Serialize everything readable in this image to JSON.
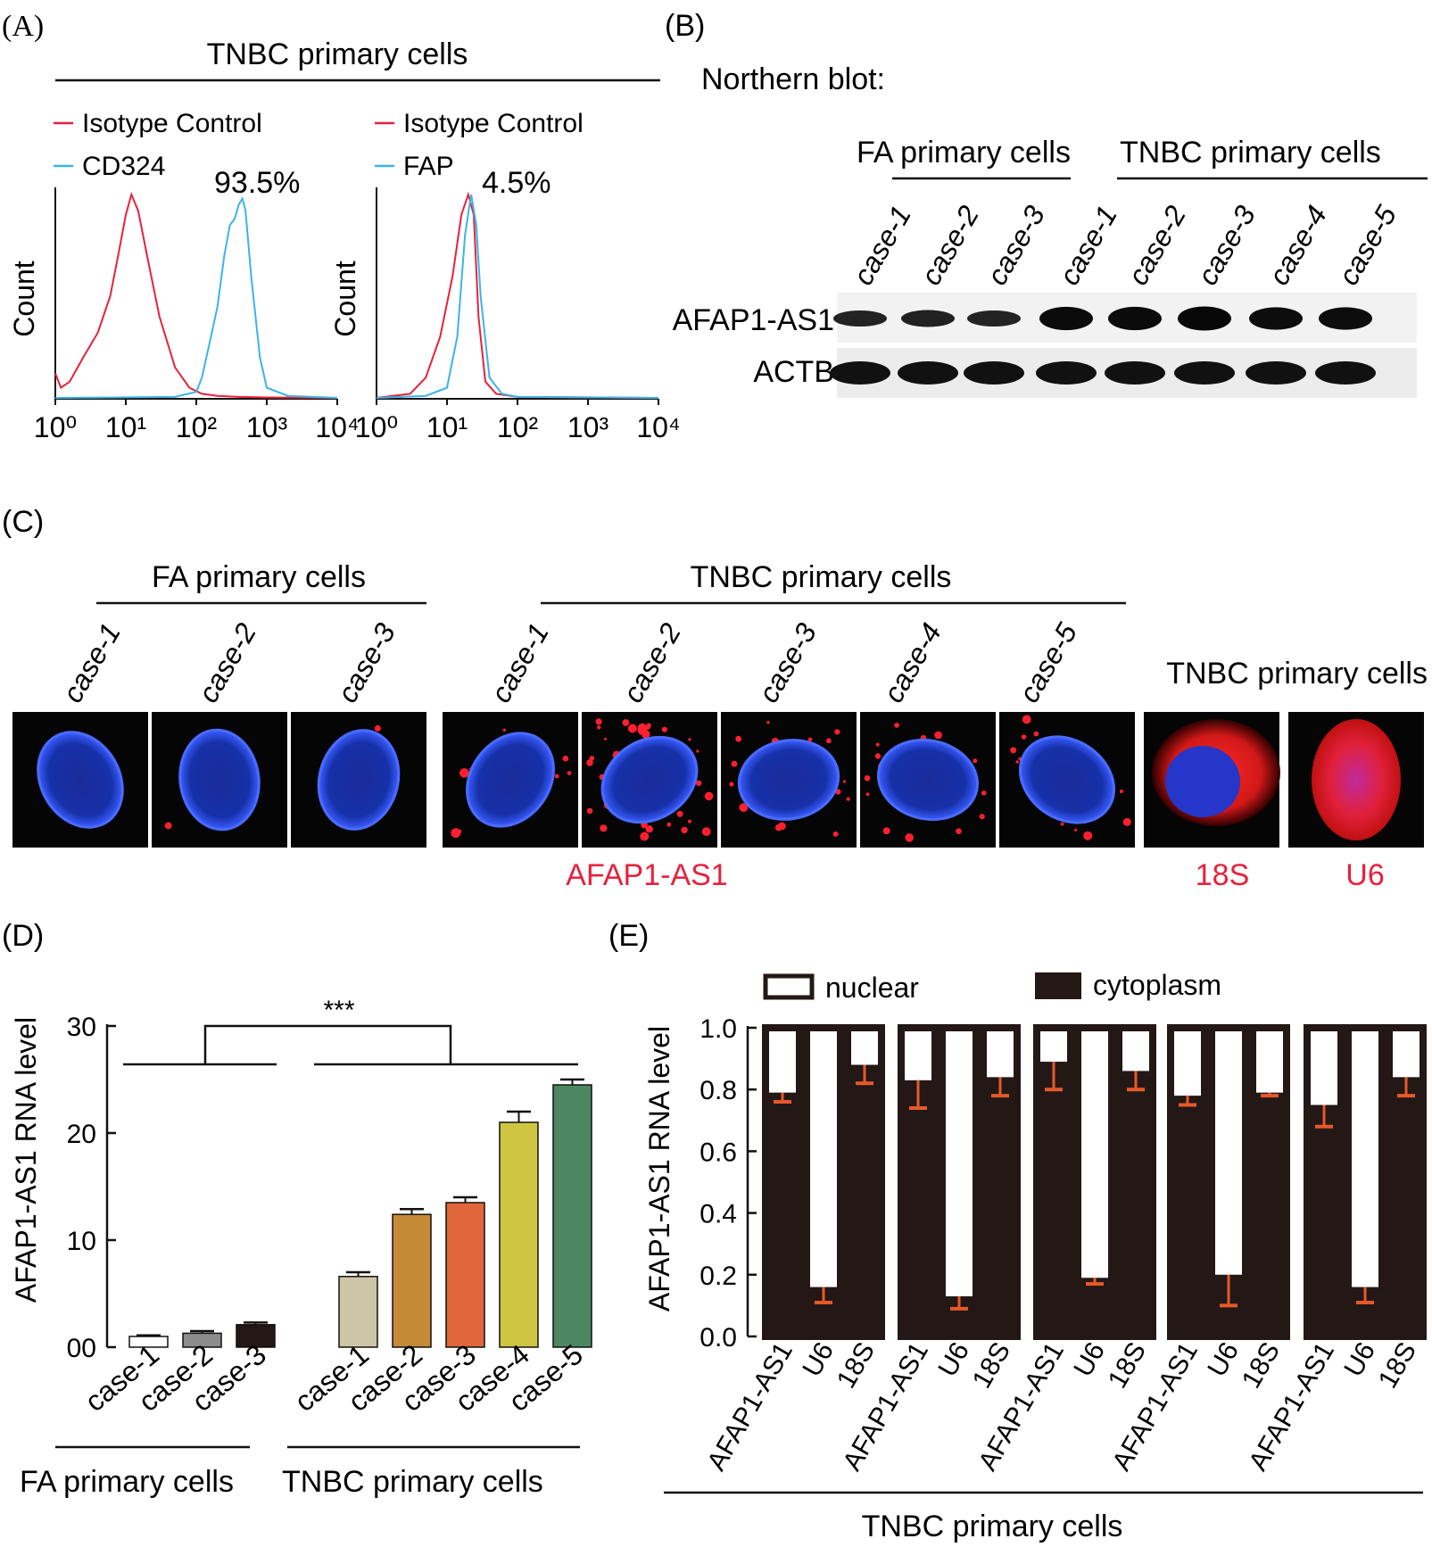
{
  "panels": {
    "A": {
      "letter": "(A)",
      "title": "TNBC primary cells",
      "ylabel": "Count",
      "ticks": [
        "10⁰",
        "10¹",
        "10²",
        "10³",
        "10⁴"
      ],
      "left": {
        "legend": [
          "Isotype Control",
          "CD324"
        ],
        "percent": "93.5%"
      },
      "right": {
        "legend": [
          "Isotype Control",
          "FAP"
        ],
        "percent": "4.5%"
      }
    },
    "B": {
      "letter": "(B)",
      "title": "Northern blot:",
      "group_fa": "FA primary cells",
      "group_tnbc": "TNBC primary cells",
      "lanes": [
        "case-1",
        "case-2",
        "case-3",
        "case-1",
        "case-2",
        "case-3",
        "case-4",
        "case-5"
      ],
      "rows": [
        "AFAP1-AS1",
        "ACTB"
      ]
    },
    "C": {
      "letter": "(C)",
      "group_fa": "FA primary cells",
      "group_tnbc": "TNBC primary cells",
      "group_tnbc2": "TNBC primary cells",
      "cases": [
        "case-1",
        "case-2",
        "case-3",
        "case-1",
        "case-2",
        "case-3",
        "case-4",
        "case-5"
      ],
      "label_main": "AFAP1-AS1",
      "label_18s": "18S",
      "label_u6": "U6"
    },
    "D": {
      "letter": "(D)",
      "significance": "***",
      "group_fa": "FA primary cells",
      "group_tnbc": "TNBC primary cells"
    },
    "E": {
      "letter": "(E)",
      "legend_nuclear": "nuclear",
      "legend_cytoplasm": "cytoplasm",
      "group": "TNBC primary cells"
    }
  },
  "colors": {
    "red": "#e8213c",
    "blue": "#3cb4e6",
    "errorbar": "#e8582a",
    "dark": "#231815",
    "labelRed": "#e8213c"
  },
  "chart_data": [
    {
      "id": "D",
      "type": "bar",
      "title": "",
      "xlabel": "",
      "ylabel": "AFAP1-AS1 RNA level",
      "ylim": [
        0,
        30
      ],
      "yticks": [
        0,
        10,
        20,
        30
      ],
      "ytick_labels": [
        "00",
        "10",
        "20",
        "30"
      ],
      "categories": [
        "case-1",
        "case-2",
        "case-3",
        "case-1",
        "case-2",
        "case-3",
        "case-4",
        "case-5"
      ],
      "groups": [
        "FA",
        "FA",
        "FA",
        "TNBC",
        "TNBC",
        "TNBC",
        "TNBC",
        "TNBC"
      ],
      "values": [
        1.0,
        1.3,
        2.1,
        6.6,
        12.4,
        13.5,
        21.0,
        24.5
      ],
      "errors": [
        0.1,
        0.2,
        0.2,
        0.4,
        0.5,
        0.5,
        1.0,
        0.5
      ],
      "bar_colors": [
        "#ffffff",
        "#8c8c8c",
        "#231815",
        "#cdc6a6",
        "#c58a35",
        "#e1663c",
        "#cfc543",
        "#4d8761"
      ]
    },
    {
      "id": "E",
      "type": "bar",
      "stacked": true,
      "ylabel": "AFAP1-AS1 RNA level",
      "ylim": [
        0,
        1.0
      ],
      "yticks": [
        0.0,
        0.2,
        0.4,
        0.6,
        0.8,
        1.0
      ],
      "ytick_labels": [
        "0.0",
        "0.2",
        "0.4",
        "0.6",
        "0.8",
        "1.0"
      ],
      "categories": [
        "AFAP1-AS1",
        "U6",
        "18S"
      ],
      "series_names": [
        "cytoplasm",
        "nuclear"
      ],
      "cytoplasm_fraction": [
        [
          0.79,
          0.16,
          0.88
        ],
        [
          0.83,
          0.13,
          0.84
        ],
        [
          0.89,
          0.19,
          0.86
        ],
        [
          0.78,
          0.2,
          0.79
        ],
        [
          0.75,
          0.16,
          0.84
        ]
      ],
      "lower_error": [
        [
          0.03,
          0.05,
          0.06
        ],
        [
          0.09,
          0.04,
          0.06
        ],
        [
          0.09,
          0.02,
          0.06
        ],
        [
          0.03,
          0.1,
          0.01
        ],
        [
          0.07,
          0.05,
          0.06
        ]
      ]
    },
    {
      "id": "A",
      "type": "line",
      "xscale": "log",
      "xlim": [
        1,
        10000
      ],
      "ylabel": "Count",
      "plots": [
        {
          "series": [
            {
              "name": "Isotype Control",
              "x": [
                1,
                1.2,
                1.6,
                2.5,
                4,
                6,
                8,
                10,
                12,
                15,
                20,
                30,
                50,
                80,
                120,
                200,
                400,
                1000,
                10000
              ],
              "y": [
                0.12,
                0.05,
                0.08,
                0.2,
                0.32,
                0.5,
                0.72,
                0.9,
                1.0,
                0.92,
                0.7,
                0.4,
                0.15,
                0.05,
                0.02,
                0.01,
                0.005,
                0.002,
                0
              ]
            },
            {
              "name": "CD324",
              "x": [
                1,
                50,
                100,
                120,
                150,
                200,
                250,
                300,
                350,
                400,
                450,
                500,
                600,
                800,
                1000,
                2000,
                10000
              ],
              "y": [
                0,
                0.005,
                0.03,
                0.1,
                0.25,
                0.45,
                0.7,
                0.85,
                0.88,
                0.95,
                0.98,
                0.92,
                0.6,
                0.2,
                0.05,
                0.01,
                0
              ]
            }
          ]
        },
        {
          "series": [
            {
              "name": "Isotype Control",
              "x": [
                1,
                3,
                5,
                8,
                12,
                16,
                20,
                24,
                28,
                35,
                50,
                100,
                10000
              ],
              "y": [
                0,
                0.02,
                0.1,
                0.3,
                0.6,
                0.9,
                1.0,
                0.9,
                0.4,
                0.08,
                0.02,
                0.005,
                0
              ]
            },
            {
              "name": "FAP",
              "x": [
                1,
                5,
                10,
                14,
                18,
                22,
                26,
                30,
                40,
                60,
                100,
                10000
              ],
              "y": [
                0,
                0.01,
                0.05,
                0.3,
                0.8,
                1.0,
                0.85,
                0.5,
                0.1,
                0.02,
                0.005,
                0
              ]
            }
          ]
        }
      ]
    },
    {
      "id": "B",
      "type": "table",
      "description": "Northern blot band intensities (relative)",
      "lanes": [
        "case-1",
        "case-2",
        "case-3",
        "case-1",
        "case-2",
        "case-3",
        "case-4",
        "case-5"
      ],
      "AFAP1-AS1": [
        0.45,
        0.5,
        0.45,
        0.9,
        0.9,
        0.95,
        0.85,
        0.85
      ],
      "ACTB": [
        1,
        1,
        1,
        1,
        1,
        1,
        1,
        1
      ]
    }
  ]
}
